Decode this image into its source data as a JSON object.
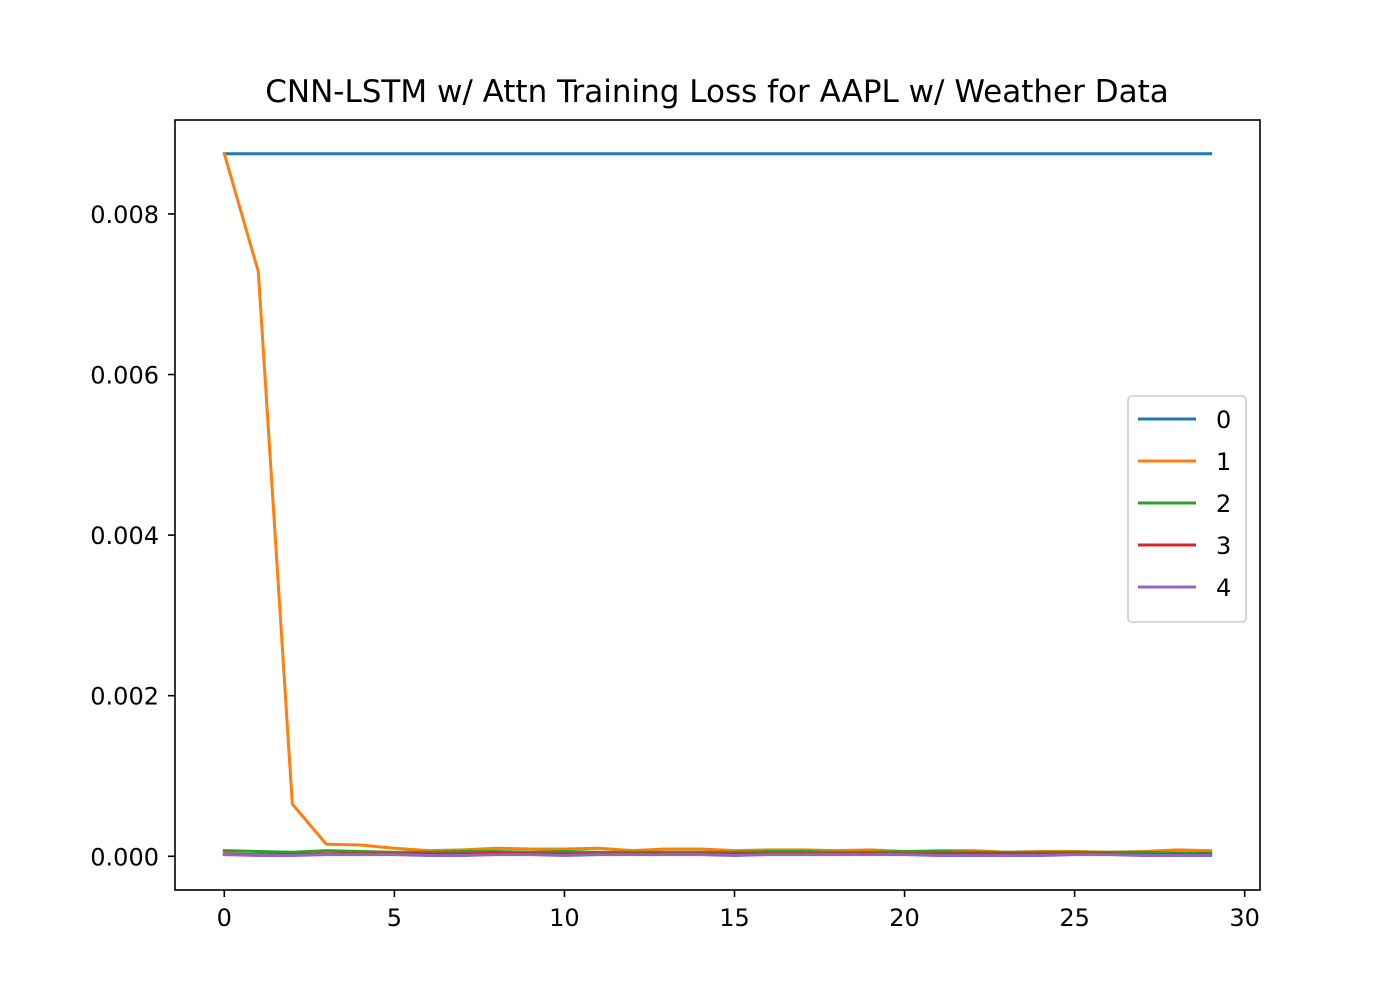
{
  "chart_data": {
    "type": "line",
    "title": "CNN-LSTM w/ Attn Training Loss for AAPL w/ Weather Data",
    "xlabel": "",
    "ylabel": "",
    "xlim": [
      -1.45,
      30.45
    ],
    "ylim": [
      -0.00042,
      0.00917
    ],
    "xticks": [
      0,
      5,
      10,
      15,
      20,
      25,
      30
    ],
    "yticks": [
      0.0,
      0.002,
      0.004,
      0.006,
      0.008
    ],
    "xtick_labels": [
      "0",
      "5",
      "10",
      "15",
      "20",
      "25",
      "30"
    ],
    "ytick_labels": [
      "0.000",
      "0.002",
      "0.004",
      "0.006",
      "0.008"
    ],
    "grid": false,
    "legend_position": "center-right",
    "x": [
      0,
      1,
      2,
      3,
      4,
      5,
      6,
      7,
      8,
      9,
      10,
      11,
      12,
      13,
      14,
      15,
      16,
      17,
      18,
      19,
      20,
      21,
      22,
      23,
      24,
      25,
      26,
      27,
      28,
      29
    ],
    "series": [
      {
        "name": "0",
        "color": "#1f77b4",
        "values": [
          0.00875,
          0.00875,
          0.00875,
          0.00875,
          0.00875,
          0.00875,
          0.00875,
          0.00875,
          0.00875,
          0.00875,
          0.00875,
          0.00875,
          0.00875,
          0.00875,
          0.00875,
          0.00875,
          0.00875,
          0.00875,
          0.00875,
          0.00875,
          0.00875,
          0.00875,
          0.00875,
          0.00875,
          0.00875,
          0.00875,
          0.00875,
          0.00875,
          0.00875,
          0.00875
        ]
      },
      {
        "name": "1",
        "color": "#ff7f0e",
        "values": [
          0.00875,
          0.00728,
          0.00065,
          0.00015,
          0.00014,
          0.0001,
          7e-05,
          8e-05,
          0.0001,
          9e-05,
          9e-05,
          0.0001,
          7e-05,
          9e-05,
          9e-05,
          7e-05,
          8e-05,
          8e-05,
          7e-05,
          8e-05,
          6e-05,
          7e-05,
          7e-05,
          5e-05,
          6e-05,
          6e-05,
          5e-05,
          6e-05,
          8e-05,
          7e-05
        ]
      },
      {
        "name": "2",
        "color": "#2ca02c",
        "values": [
          7e-05,
          6e-05,
          5e-05,
          7e-05,
          6e-05,
          5e-05,
          5e-05,
          6e-05,
          6e-05,
          5e-05,
          6e-05,
          5e-05,
          5e-05,
          5e-05,
          5e-05,
          5e-05,
          6e-05,
          6e-05,
          5e-05,
          5e-05,
          6e-05,
          6e-05,
          5e-05,
          5e-05,
          5e-05,
          5e-05,
          5e-05,
          5e-05,
          4e-05,
          4e-05
        ]
      },
      {
        "name": "3",
        "color": "#d62728",
        "values": [
          3e-05,
          2e-05,
          2e-05,
          3e-05,
          3e-05,
          3e-05,
          3e-05,
          3e-05,
          4e-05,
          3e-05,
          3e-05,
          3e-05,
          3e-05,
          3e-05,
          3e-05,
          3e-05,
          3e-05,
          3e-05,
          3e-05,
          3e-05,
          3e-05,
          3e-05,
          3e-05,
          3e-05,
          3e-05,
          3e-05,
          3e-05,
          2e-05,
          2e-05,
          2e-05
        ]
      },
      {
        "name": "4",
        "color": "#9467bd",
        "values": [
          2e-05,
          1e-05,
          1e-05,
          2e-05,
          2e-05,
          2e-05,
          1e-05,
          1e-05,
          2e-05,
          2e-05,
          1e-05,
          2e-05,
          2e-05,
          2e-05,
          2e-05,
          1e-05,
          2e-05,
          2e-05,
          2e-05,
          2e-05,
          2e-05,
          1e-05,
          1e-05,
          1e-05,
          1e-05,
          2e-05,
          2e-05,
          1e-05,
          1e-05,
          1e-05
        ]
      }
    ]
  }
}
